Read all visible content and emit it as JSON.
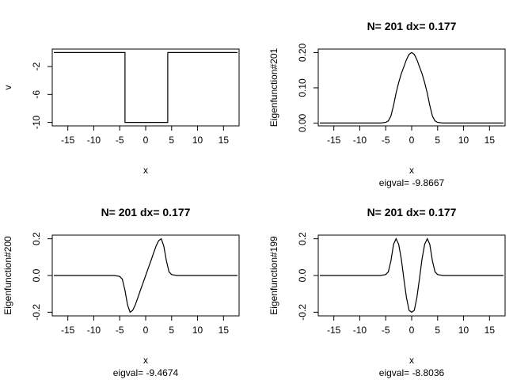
{
  "chart_data": [
    {
      "type": "line",
      "title": "",
      "xlabel": "x",
      "ylabel": "v",
      "subtitle": "",
      "xlim": [
        -18,
        18
      ],
      "ylim": [
        -10.5,
        0.5
      ],
      "xticks": [
        "-15",
        "-10",
        "-5",
        "0",
        "5",
        "10",
        "15"
      ],
      "xtick_values": [
        -15,
        -10,
        -5,
        0,
        5,
        10,
        15
      ],
      "yticks": [
        "-10",
        "-6",
        "-2"
      ],
      "ytick_values": [
        -10,
        -6,
        -2
      ],
      "x": [
        -17.7,
        -3.98,
        -3.98,
        4.25,
        4.25,
        17.7
      ],
      "values": [
        0,
        0,
        -10,
        -10,
        0,
        0
      ]
    },
    {
      "type": "line",
      "title": "N= 201 dx= 0.177",
      "xlabel": "x",
      "ylabel": "Eigenfunction#201",
      "subtitle": "eigval= -9.8667",
      "xlim": [
        -18,
        18
      ],
      "ylim": [
        -0.008,
        0.21
      ],
      "xticks": [
        "-15",
        "-10",
        "-5",
        "0",
        "5",
        "10",
        "15"
      ],
      "xtick_values": [
        -15,
        -10,
        -5,
        0,
        5,
        10,
        15
      ],
      "yticks": [
        "0.00",
        "0.10",
        "0.20"
      ],
      "ytick_values": [
        0,
        0.1,
        0.2
      ],
      "x": [
        -17.7,
        -6,
        -5,
        -4.5,
        -4,
        -3.5,
        -3,
        -2.5,
        -2,
        -1.5,
        -1,
        -0.5,
        0,
        0.5,
        1,
        1.5,
        2,
        2.5,
        3,
        3.5,
        4,
        4.5,
        5,
        6,
        17.7
      ],
      "values": [
        0,
        0,
        0.002,
        0.006,
        0.02,
        0.05,
        0.085,
        0.115,
        0.14,
        0.16,
        0.18,
        0.195,
        0.2,
        0.195,
        0.18,
        0.16,
        0.14,
        0.115,
        0.085,
        0.05,
        0.02,
        0.006,
        0.002,
        0,
        0
      ]
    },
    {
      "type": "line",
      "title": "N= 201 dx= 0.177",
      "xlabel": "x",
      "ylabel": "Eigenfunction#200",
      "subtitle": "eigval= -9.4674",
      "xlim": [
        -18,
        18
      ],
      "ylim": [
        -0.22,
        0.22
      ],
      "xticks": [
        "-15",
        "-10",
        "-5",
        "0",
        "5",
        "10",
        "15"
      ],
      "xtick_values": [
        -15,
        -10,
        -5,
        0,
        5,
        10,
        15
      ],
      "yticks": [
        "-0.2",
        "0.0",
        "0.2"
      ],
      "ytick_values": [
        -0.2,
        0,
        0.2
      ],
      "x": [
        -17.7,
        -6,
        -5,
        -4.5,
        -4,
        -3.5,
        -3,
        -2.5,
        -2,
        -1.5,
        -1,
        -0.5,
        0,
        0.5,
        1,
        1.5,
        2,
        2.5,
        3,
        3.5,
        4,
        4.5,
        5,
        6,
        17.7
      ],
      "values": [
        0,
        0,
        -0.005,
        -0.02,
        -0.08,
        -0.16,
        -0.2,
        -0.19,
        -0.16,
        -0.12,
        -0.08,
        -0.04,
        0,
        0.04,
        0.08,
        0.12,
        0.16,
        0.19,
        0.2,
        0.16,
        0.08,
        0.02,
        0.005,
        0,
        0
      ]
    },
    {
      "type": "line",
      "title": "N= 201 dx= 0.177",
      "xlabel": "x",
      "ylabel": "Eigenfunction#199",
      "subtitle": "eigval= -8.8036",
      "xlim": [
        -18,
        18
      ],
      "ylim": [
        -0.22,
        0.22
      ],
      "xticks": [
        "-15",
        "-10",
        "-5",
        "0",
        "5",
        "10",
        "15"
      ],
      "xtick_values": [
        -15,
        -10,
        -5,
        0,
        5,
        10,
        15
      ],
      "yticks": [
        "-0.2",
        "0.0",
        "0.2"
      ],
      "ytick_values": [
        -0.2,
        0,
        0.2
      ],
      "x": [
        -17.7,
        -6,
        -5,
        -4.5,
        -4,
        -3.5,
        -3,
        -2.5,
        -2,
        -1.5,
        -1,
        -0.5,
        0,
        0.5,
        1,
        1.5,
        2,
        2.5,
        3,
        3.5,
        4,
        4.5,
        5,
        6,
        17.7
      ],
      "values": [
        0,
        0,
        0.005,
        0.02,
        0.08,
        0.17,
        0.2,
        0.17,
        0.09,
        -0.02,
        -0.12,
        -0.19,
        -0.2,
        -0.19,
        -0.12,
        -0.02,
        0.09,
        0.17,
        0.2,
        0.17,
        0.08,
        0.02,
        0.005,
        0,
        0
      ]
    }
  ]
}
